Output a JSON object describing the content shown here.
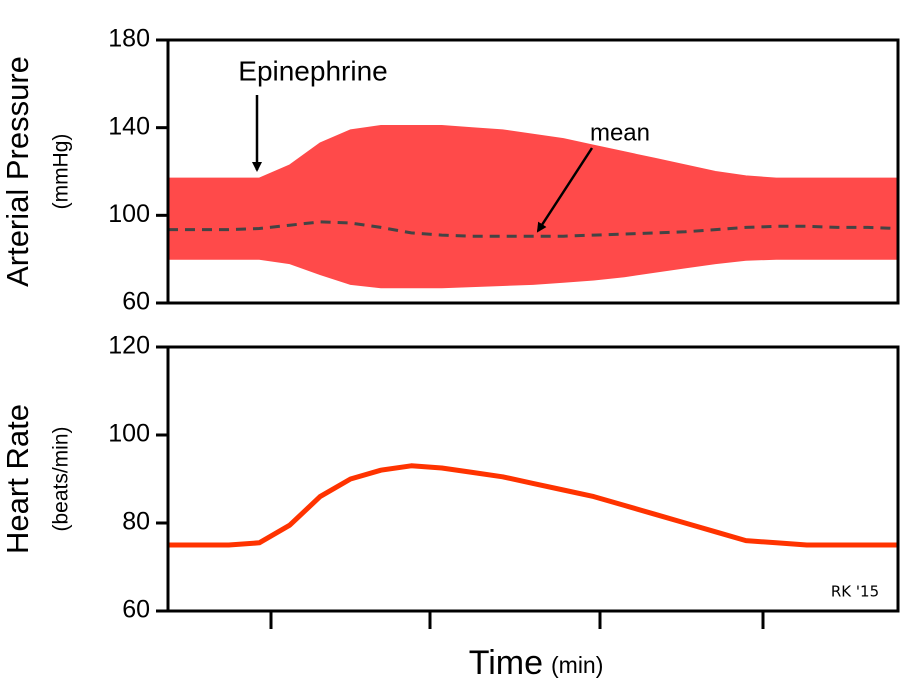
{
  "chart_data": [
    {
      "type": "range",
      "ylabel": "Arterial Pressure",
      "ylabel_unit": "(mmHg)",
      "annotations": [
        "Epinephrine",
        "mean"
      ],
      "categories": [
        null,
        null,
        null,
        null,
        null,
        null,
        null,
        null,
        null,
        null,
        null,
        null,
        null,
        null,
        null,
        null,
        null,
        null,
        null,
        null,
        null,
        null,
        null,
        null,
        null
      ],
      "series": [
        {
          "color": "#ff4a4a",
          "values": [
            117,
            117,
            117,
            117,
            123,
            133,
            139,
            141,
            141,
            141,
            140,
            139,
            137,
            135,
            132,
            129,
            126,
            123,
            120,
            118,
            117,
            117,
            117,
            117,
            117
          ]
        },
        {
          "color": "#ff4a4a",
          "values": [
            80,
            80,
            80,
            80,
            78,
            73,
            68.5,
            67,
            67,
            67,
            67.5,
            68,
            68.5,
            69.5,
            70.5,
            72,
            74,
            76,
            78,
            79.5,
            80,
            80,
            80,
            80,
            80
          ]
        },
        {
          "color": "#444444",
          "dashed": true,
          "values": [
            93.5,
            93.5,
            93.5,
            94,
            95.5,
            97,
            96.5,
            94.5,
            92,
            91,
            90.5,
            90.5,
            90.5,
            90.5,
            91,
            91.5,
            92,
            92.5,
            93.5,
            94.5,
            95,
            95,
            94.5,
            94.5,
            94
          ]
        }
      ],
      "ylim": [
        60,
        180
      ],
      "yticks": [
        60,
        100,
        140,
        180
      ]
    },
    {
      "type": "line",
      "ylabel": "Heart Rate",
      "ylabel_unit": "(beats/min)",
      "xlabel": "Time",
      "xlabel_unit": "(min)",
      "annotations": [
        "RK '15"
      ],
      "categories": [
        null,
        null,
        null,
        null,
        null,
        null,
        null,
        null,
        null,
        null,
        null,
        null,
        null,
        null,
        null,
        null,
        null,
        null,
        null,
        null,
        null,
        null,
        null,
        null,
        null
      ],
      "series": [
        {
          "color": "#ff3300",
          "values": [
            75,
            75,
            75,
            75.5,
            79.5,
            86,
            90,
            92,
            93,
            92.5,
            91.5,
            90.5,
            89,
            87.5,
            86,
            84,
            82,
            80,
            78,
            76,
            75.5,
            75,
            75,
            75,
            75
          ]
        }
      ],
      "ylim": [
        60,
        120
      ],
      "yticks": [
        60,
        80,
        100,
        120
      ]
    }
  ]
}
